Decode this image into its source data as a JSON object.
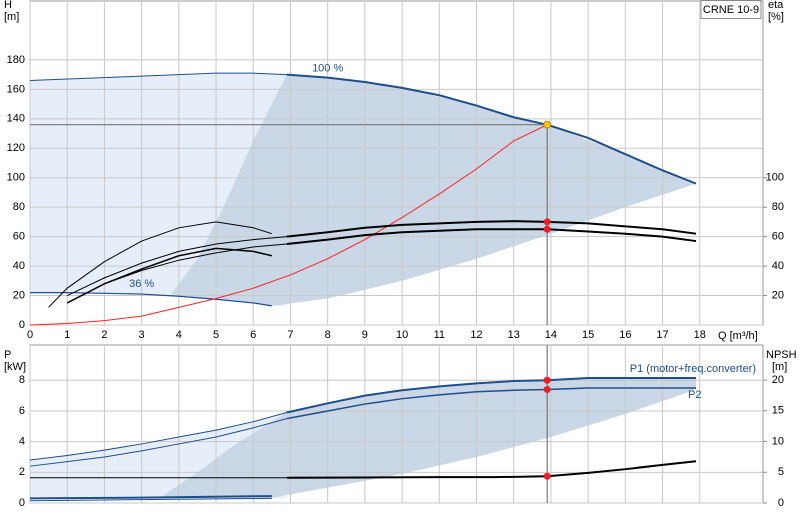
{
  "chart_data": [
    {
      "type": "line",
      "title": "CRNE 10-9",
      "ylabel": "H",
      "yunit": "[m]",
      "y2label": "eta",
      "y2unit": "[%]",
      "xlabel": "Q [m³/h]",
      "xlim": [
        0,
        19.7
      ],
      "xticks": [
        0,
        1,
        2,
        3,
        4,
        5,
        6,
        7,
        8,
        9,
        10,
        11,
        12,
        13,
        14,
        15,
        16,
        17,
        18
      ],
      "ylim": [
        0,
        220
      ],
      "yticks": [
        0,
        20,
        40,
        60,
        80,
        100,
        120,
        140,
        160,
        180
      ],
      "y2lim": [
        0,
        220
      ],
      "y2ticks": [
        20,
        40,
        60,
        80,
        100
      ],
      "grid": true,
      "guides": true,
      "areas": [
        {
          "color": "#e6eefa",
          "x": [
            0,
            2,
            4,
            6,
            6.9,
            6.9,
            6.5,
            4,
            2,
            0
          ],
          "values": [
            166,
            168,
            170,
            171,
            170,
            13,
            13,
            19.5,
            21.5,
            22
          ]
        },
        {
          "color": "#c9d7e6",
          "x": [
            6.9,
            8,
            10,
            12,
            13.9,
            16,
            17.9,
            16,
            14,
            12,
            10,
            8,
            6.5,
            5,
            3.8,
            4.5,
            5.2,
            6,
            6.9
          ],
          "values": [
            170,
            168,
            161,
            149,
            136,
            116,
            96,
            80,
            62,
            45,
            30,
            18,
            13,
            17.5,
            21,
            45,
            80,
            125,
            170
          ]
        }
      ],
      "series": [
        {
          "color": "#1f4e8c",
          "width": 1,
          "x": [
            0,
            1,
            2,
            3,
            4,
            5,
            6,
            6.9
          ],
          "values": [
            166,
            167,
            168,
            169,
            170,
            171,
            171,
            170
          ]
        },
        {
          "color": "#1f4e8c",
          "width": 2,
          "label": "100 %",
          "x": [
            6.9,
            8,
            9,
            10,
            11,
            12,
            13,
            13.9,
            15,
            16,
            17,
            17.9
          ],
          "values": [
            170,
            168,
            165,
            161,
            156,
            149,
            141,
            136,
            127,
            116,
            105,
            96
          ]
        },
        {
          "color": "#1f4e8c",
          "width": 1.2,
          "label": "36 %",
          "x": [
            0,
            1,
            2,
            3,
            4,
            5,
            6,
            6.5
          ],
          "values": [
            22,
            22,
            21.5,
            21,
            19.5,
            17.5,
            15,
            13
          ]
        },
        {
          "color": "#ff2020",
          "width": 1,
          "x": [
            0,
            1,
            2,
            3,
            4,
            5,
            6,
            7,
            8,
            9,
            10,
            11,
            12,
            13,
            13.9
          ],
          "values": [
            0,
            1,
            3,
            6,
            12,
            18,
            25,
            34,
            45,
            58,
            73,
            89,
            106,
            125,
            136
          ]
        },
        {
          "color": "#000000",
          "width": 1,
          "axis": "y2",
          "x": [
            1,
            2,
            3,
            4,
            5,
            6,
            6.9
          ],
          "values": [
            20,
            32,
            42,
            50,
            55,
            58,
            60
          ]
        },
        {
          "color": "#000000",
          "width": 2,
          "axis": "y2",
          "x": [
            6.9,
            8,
            9,
            10,
            11,
            12,
            13,
            13.9,
            15,
            16,
            17,
            17.9
          ],
          "values": [
            60,
            63,
            66,
            68,
            69,
            70,
            70.5,
            70,
            69,
            67,
            65,
            62
          ]
        },
        {
          "color": "#000000",
          "width": 1,
          "axis": "y2",
          "x": [
            1.4,
            2,
            3,
            4,
            5,
            6,
            6.9
          ],
          "values": [
            20,
            28,
            37,
            44,
            49,
            53,
            55
          ]
        },
        {
          "color": "#000000",
          "width": 2,
          "axis": "y2",
          "x": [
            6.9,
            8,
            9,
            10,
            11,
            12,
            13,
            13.9,
            15,
            16,
            17,
            17.9
          ],
          "values": [
            55,
            58,
            61,
            63,
            64,
            65,
            65,
            65,
            63.5,
            62,
            60,
            57
          ]
        },
        {
          "color": "#000000",
          "width": 1,
          "axis": "y2",
          "x": [
            0.5,
            1,
            2,
            3,
            4,
            5,
            6,
            6.5
          ],
          "values": [
            12,
            25,
            43,
            57,
            66,
            70,
            66,
            62
          ]
        },
        {
          "color": "#000000",
          "width": 1.5,
          "axis": "y2",
          "x": [
            1,
            2,
            3,
            4,
            5,
            6,
            6.5
          ],
          "values": [
            15,
            28,
            38,
            47,
            52,
            50,
            47
          ]
        }
      ],
      "points": [
        {
          "x": 13.9,
          "y": 136,
          "color": "#f5c518"
        },
        {
          "x": 13.9,
          "y": 70,
          "axis": "y2",
          "color": "#ee1c24"
        },
        {
          "x": 13.9,
          "y": 65,
          "axis": "y2",
          "color": "#ee1c24"
        }
      ]
    },
    {
      "type": "line",
      "ylabel": "P",
      "yunit": "[kW]",
      "y2label": "NPSH",
      "y2unit": "[m]",
      "xlim": [
        0,
        19.7
      ],
      "ylim": [
        0,
        10.3
      ],
      "yticks": [
        0,
        2,
        4,
        6,
        8
      ],
      "y2lim": [
        0,
        25.7
      ],
      "y2ticks": [
        0,
        5,
        10,
        15,
        20
      ],
      "grid": true,
      "areas": [
        {
          "color": "#e6eefa",
          "x": [
            0,
            2,
            4,
            6,
            6.9,
            6.9,
            0
          ],
          "values": [
            2.8,
            3.45,
            4.3,
            5.3,
            5.9,
            0.3,
            0.3
          ]
        },
        {
          "color": "#c9d7e6",
          "x": [
            6.9,
            9,
            11,
            13.9,
            15,
            17.9,
            17.9,
            16,
            14,
            12,
            10,
            8,
            6.5,
            3.5,
            4.5,
            5.5,
            6.9
          ],
          "values": [
            5.9,
            7.0,
            7.6,
            8.0,
            8.15,
            8.15,
            7.4,
            5.8,
            4.3,
            3.0,
            1.9,
            1.0,
            0.35,
            0.35,
            2.0,
            3.8,
            5.9
          ]
        }
      ],
      "series": [
        {
          "color": "#1f4e8c",
          "width": 1,
          "x": [
            0,
            1,
            2,
            3,
            4,
            5,
            6,
            6.9
          ],
          "values": [
            2.8,
            3.1,
            3.45,
            3.85,
            4.3,
            4.75,
            5.3,
            5.9
          ]
        },
        {
          "color": "#1f4e8c",
          "width": 2,
          "label": "P1 (motor+freq.converter)",
          "x": [
            6.9,
            8,
            9,
            10,
            11,
            12,
            13,
            13.9,
            15,
            16,
            17,
            17.9
          ],
          "values": [
            5.9,
            6.5,
            7.0,
            7.35,
            7.6,
            7.8,
            7.95,
            8.0,
            8.15,
            8.15,
            8.15,
            8.15
          ]
        },
        {
          "color": "#1f4e8c",
          "width": 1,
          "x": [
            0,
            1,
            2,
            3,
            4,
            5,
            6,
            6.9
          ],
          "values": [
            2.4,
            2.7,
            3.0,
            3.4,
            3.85,
            4.3,
            4.9,
            5.5
          ]
        },
        {
          "color": "#1f4e8c",
          "width": 1.5,
          "label": "P2",
          "x": [
            6.9,
            8,
            9,
            10,
            11,
            12,
            13,
            13.9,
            15,
            16,
            17,
            17.9
          ],
          "values": [
            5.5,
            6.0,
            6.45,
            6.8,
            7.05,
            7.25,
            7.35,
            7.4,
            7.5,
            7.5,
            7.5,
            7.5
          ]
        },
        {
          "color": "#000000",
          "width": 1,
          "axis": "y2",
          "x": [
            0,
            6.9
          ],
          "values": [
            4.1,
            4.1
          ]
        },
        {
          "color": "#000000",
          "width": 2,
          "axis": "y2",
          "x": [
            6.9,
            9,
            11,
            12.5,
            13.9,
            15,
            16,
            17,
            17.9
          ],
          "values": [
            4.1,
            4.15,
            4.2,
            4.2,
            4.35,
            4.9,
            5.5,
            6.2,
            6.8
          ]
        },
        {
          "color": "#1f4e8c",
          "width": 1,
          "x": [
            0,
            6.5
          ],
          "values": [
            0.15,
            0.3
          ]
        },
        {
          "color": "#1f4e8c",
          "width": 2,
          "x": [
            0,
            3,
            6.5
          ],
          "values": [
            0.3,
            0.35,
            0.45
          ]
        }
      ],
      "points": [
        {
          "x": 13.9,
          "y": 8.0,
          "color": "#ee1c24"
        },
        {
          "x": 13.9,
          "y": 7.4,
          "color": "#ee1c24"
        },
        {
          "x": 13.9,
          "y": 4.35,
          "axis": "y2",
          "color": "#ee1c24"
        }
      ]
    }
  ]
}
